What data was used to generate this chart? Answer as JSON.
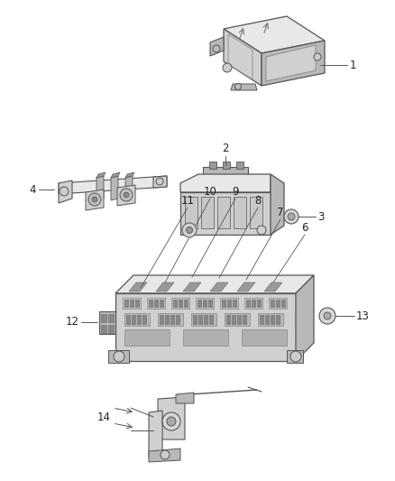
{
  "bg_color": "#ffffff",
  "lc": "#555555",
  "lc2": "#333333",
  "fc_light": "#e8e8e8",
  "fc_mid": "#d0d0d0",
  "fc_dark": "#b8b8b8",
  "fc_darker": "#999999",
  "label_color": "#222222",
  "figsize": [
    4.38,
    5.33
  ],
  "dpi": 100
}
